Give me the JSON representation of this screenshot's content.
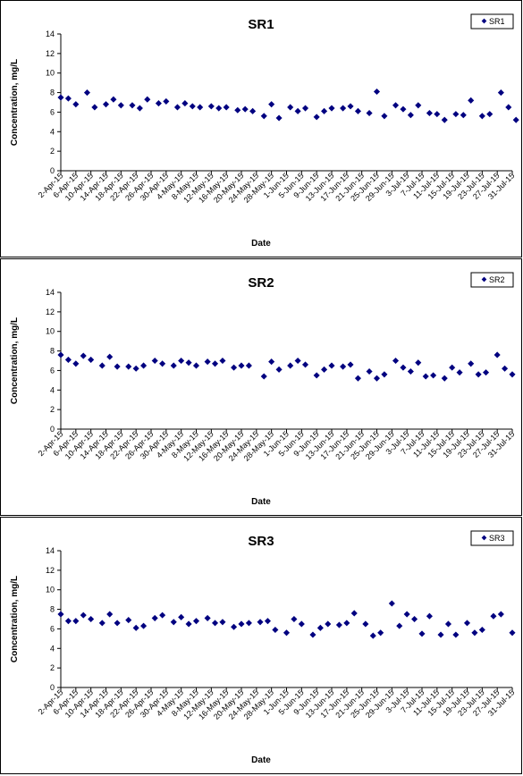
{
  "chart_data": [
    {
      "type": "scatter",
      "title": "SR1",
      "xlabel": "Date",
      "ylabel": "Concentration, mg/L",
      "ylim": [
        0,
        14
      ],
      "yticks": [
        0,
        2,
        4,
        6,
        8,
        10,
        12,
        14
      ],
      "x_tick_labels": [
        "2-Apr-15",
        "6-Apr-15",
        "10-Apr-15",
        "14-Apr-15",
        "18-Apr-15",
        "22-Apr-15",
        "26-Apr-15",
        "30-Apr-15",
        "4-May-15",
        "8-May-15",
        "12-May-15",
        "16-May-15",
        "20-May-15",
        "24-May-15",
        "28-May-15",
        "1-Jun-15",
        "5-Jun-15",
        "9-Jun-15",
        "13-Jun-15",
        "17-Jun-15",
        "21-Jun-15",
        "25-Jun-15",
        "29-Jun-15",
        "3-Jul-15",
        "7-Jul-15",
        "11-Jul-15",
        "15-Jul-15",
        "19-Jul-15",
        "23-Jul-15",
        "27-Jul-15",
        "31-Jul-15"
      ],
      "legend": "top-right",
      "grid": false,
      "series": [
        {
          "name": "SR1",
          "color": "#000080",
          "points": [
            {
              "x": "2-Apr-15",
              "y": 7.5
            },
            {
              "x": "4-Apr-15",
              "y": 7.4
            },
            {
              "x": "6-Apr-15",
              "y": 6.8
            },
            {
              "x": "9-Apr-15",
              "y": 8.0
            },
            {
              "x": "11-Apr-15",
              "y": 6.5
            },
            {
              "x": "14-Apr-15",
              "y": 6.8
            },
            {
              "x": "16-Apr-15",
              "y": 7.3
            },
            {
              "x": "18-Apr-15",
              "y": 6.7
            },
            {
              "x": "21-Apr-15",
              "y": 6.7
            },
            {
              "x": "23-Apr-15",
              "y": 6.4
            },
            {
              "x": "25-Apr-15",
              "y": 7.3
            },
            {
              "x": "28-Apr-15",
              "y": 6.9
            },
            {
              "x": "30-Apr-15",
              "y": 7.1
            },
            {
              "x": "3-May-15",
              "y": 6.5
            },
            {
              "x": "5-May-15",
              "y": 6.9
            },
            {
              "x": "7-May-15",
              "y": 6.6
            },
            {
              "x": "9-May-15",
              "y": 6.5
            },
            {
              "x": "12-May-15",
              "y": 6.6
            },
            {
              "x": "14-May-15",
              "y": 6.4
            },
            {
              "x": "16-May-15",
              "y": 6.5
            },
            {
              "x": "19-May-15",
              "y": 6.2
            },
            {
              "x": "21-May-15",
              "y": 6.3
            },
            {
              "x": "23-May-15",
              "y": 6.1
            },
            {
              "x": "26-May-15",
              "y": 5.6
            },
            {
              "x": "28-May-15",
              "y": 6.8
            },
            {
              "x": "30-May-15",
              "y": 5.4
            },
            {
              "x": "2-Jun-15",
              "y": 6.5
            },
            {
              "x": "4-Jun-15",
              "y": 6.1
            },
            {
              "x": "6-Jun-15",
              "y": 6.4
            },
            {
              "x": "9-Jun-15",
              "y": 5.5
            },
            {
              "x": "11-Jun-15",
              "y": 6.1
            },
            {
              "x": "13-Jun-15",
              "y": 6.4
            },
            {
              "x": "16-Jun-15",
              "y": 6.4
            },
            {
              "x": "18-Jun-15",
              "y": 6.6
            },
            {
              "x": "20-Jun-15",
              "y": 6.1
            },
            {
              "x": "23-Jun-15",
              "y": 5.9
            },
            {
              "x": "25-Jun-15",
              "y": 8.1
            },
            {
              "x": "27-Jun-15",
              "y": 5.6
            },
            {
              "x": "30-Jun-15",
              "y": 6.7
            },
            {
              "x": "2-Jul-15",
              "y": 6.3
            },
            {
              "x": "4-Jul-15",
              "y": 5.7
            },
            {
              "x": "6-Jul-15",
              "y": 6.7
            },
            {
              "x": "9-Jul-15",
              "y": 5.9
            },
            {
              "x": "11-Jul-15",
              "y": 5.8
            },
            {
              "x": "13-Jul-15",
              "y": 5.2
            },
            {
              "x": "16-Jul-15",
              "y": 5.8
            },
            {
              "x": "18-Jul-15",
              "y": 5.7
            },
            {
              "x": "20-Jul-15",
              "y": 7.2
            },
            {
              "x": "23-Jul-15",
              "y": 5.6
            },
            {
              "x": "25-Jul-15",
              "y": 5.8
            },
            {
              "x": "28-Jul-15",
              "y": 8.0
            },
            {
              "x": "30-Jul-15",
              "y": 6.5
            },
            {
              "x": "1-Aug-15",
              "y": 5.2
            }
          ]
        }
      ]
    },
    {
      "type": "scatter",
      "title": "SR2",
      "xlabel": "Date",
      "ylabel": "Concentration, mg/L",
      "ylim": [
        0,
        14
      ],
      "yticks": [
        0,
        2,
        4,
        6,
        8,
        10,
        12,
        14
      ],
      "x_tick_labels": [
        "2-Apr-15",
        "6-Apr-15",
        "10-Apr-15",
        "14-Apr-15",
        "18-Apr-15",
        "22-Apr-15",
        "26-Apr-15",
        "30-Apr-15",
        "4-May-15",
        "8-May-15",
        "12-May-15",
        "16-May-15",
        "20-May-15",
        "24-May-15",
        "28-May-15",
        "1-Jun-15",
        "5-Jun-15",
        "9-Jun-15",
        "13-Jun-15",
        "17-Jun-15",
        "21-Jun-15",
        "25-Jun-15",
        "29-Jun-15",
        "3-Jul-15",
        "7-Jul-15",
        "11-Jul-15",
        "15-Jul-15",
        "19-Jul-15",
        "23-Jul-15",
        "27-Jul-15",
        "31-Jul-15"
      ],
      "legend": "top-right",
      "grid": false,
      "series": [
        {
          "name": "SR2",
          "color": "#000080",
          "points": [
            {
              "x": "2-Apr-15",
              "y": 7.6
            },
            {
              "x": "4-Apr-15",
              "y": 7.1
            },
            {
              "x": "6-Apr-15",
              "y": 6.7
            },
            {
              "x": "8-Apr-15",
              "y": 7.5
            },
            {
              "x": "10-Apr-15",
              "y": 7.1
            },
            {
              "x": "13-Apr-15",
              "y": 6.5
            },
            {
              "x": "15-Apr-15",
              "y": 7.4
            },
            {
              "x": "17-Apr-15",
              "y": 6.4
            },
            {
              "x": "20-Apr-15",
              "y": 6.4
            },
            {
              "x": "22-Apr-15",
              "y": 6.2
            },
            {
              "x": "24-Apr-15",
              "y": 6.5
            },
            {
              "x": "27-Apr-15",
              "y": 7.0
            },
            {
              "x": "29-Apr-15",
              "y": 6.7
            },
            {
              "x": "2-May-15",
              "y": 6.5
            },
            {
              "x": "4-May-15",
              "y": 7.0
            },
            {
              "x": "6-May-15",
              "y": 6.8
            },
            {
              "x": "8-May-15",
              "y": 6.5
            },
            {
              "x": "11-May-15",
              "y": 6.9
            },
            {
              "x": "13-May-15",
              "y": 6.7
            },
            {
              "x": "15-May-15",
              "y": 7.0
            },
            {
              "x": "18-May-15",
              "y": 6.3
            },
            {
              "x": "20-May-15",
              "y": 6.5
            },
            {
              "x": "22-May-15",
              "y": 6.5
            },
            {
              "x": "26-May-15",
              "y": 5.4
            },
            {
              "x": "28-May-15",
              "y": 6.9
            },
            {
              "x": "30-May-15",
              "y": 6.1
            },
            {
              "x": "2-Jun-15",
              "y": 6.5
            },
            {
              "x": "4-Jun-15",
              "y": 7.0
            },
            {
              "x": "6-Jun-15",
              "y": 6.6
            },
            {
              "x": "9-Jun-15",
              "y": 5.5
            },
            {
              "x": "11-Jun-15",
              "y": 6.1
            },
            {
              "x": "13-Jun-15",
              "y": 6.5
            },
            {
              "x": "16-Jun-15",
              "y": 6.4
            },
            {
              "x": "18-Jun-15",
              "y": 6.6
            },
            {
              "x": "20-Jun-15",
              "y": 5.2
            },
            {
              "x": "23-Jun-15",
              "y": 5.9
            },
            {
              "x": "25-Jun-15",
              "y": 5.2
            },
            {
              "x": "27-Jun-15",
              "y": 5.6
            },
            {
              "x": "30-Jun-15",
              "y": 7.0
            },
            {
              "x": "2-Jul-15",
              "y": 6.3
            },
            {
              "x": "4-Jul-15",
              "y": 5.9
            },
            {
              "x": "6-Jul-15",
              "y": 6.8
            },
            {
              "x": "8-Jul-15",
              "y": 5.4
            },
            {
              "x": "10-Jul-15",
              "y": 5.5
            },
            {
              "x": "13-Jul-15",
              "y": 5.2
            },
            {
              "x": "15-Jul-15",
              "y": 6.3
            },
            {
              "x": "17-Jul-15",
              "y": 5.8
            },
            {
              "x": "20-Jul-15",
              "y": 6.7
            },
            {
              "x": "22-Jul-15",
              "y": 5.6
            },
            {
              "x": "24-Jul-15",
              "y": 5.8
            },
            {
              "x": "27-Jul-15",
              "y": 7.6
            },
            {
              "x": "29-Jul-15",
              "y": 6.2
            },
            {
              "x": "31-Jul-15",
              "y": 5.6
            }
          ]
        }
      ]
    },
    {
      "type": "scatter",
      "title": "SR3",
      "xlabel": "Date",
      "ylabel": "Concentration, mg/L",
      "ylim": [
        0,
        14
      ],
      "yticks": [
        0,
        2,
        4,
        6,
        8,
        10,
        12,
        14
      ],
      "x_tick_labels": [
        "2-Apr-15",
        "6-Apr-15",
        "10-Apr-15",
        "14-Apr-15",
        "18-Apr-15",
        "22-Apr-15",
        "26-Apr-15",
        "30-Apr-15",
        "4-May-15",
        "8-May-15",
        "12-May-15",
        "16-May-15",
        "20-May-15",
        "24-May-15",
        "28-May-15",
        "1-Jun-15",
        "5-Jun-15",
        "9-Jun-15",
        "13-Jun-15",
        "17-Jun-15",
        "21-Jun-15",
        "25-Jun-15",
        "29-Jun-15",
        "3-Jul-15",
        "7-Jul-15",
        "11-Jul-15",
        "15-Jul-15",
        "19-Jul-15",
        "23-Jul-15",
        "27-Jul-15",
        "31-Jul-15"
      ],
      "legend": "top-right",
      "grid": false,
      "series": [
        {
          "name": "SR3",
          "color": "#000080",
          "points": [
            {
              "x": "2-Apr-15",
              "y": 7.5
            },
            {
              "x": "4-Apr-15",
              "y": 6.8
            },
            {
              "x": "6-Apr-15",
              "y": 6.8
            },
            {
              "x": "8-Apr-15",
              "y": 7.4
            },
            {
              "x": "10-Apr-15",
              "y": 7.0
            },
            {
              "x": "13-Apr-15",
              "y": 6.6
            },
            {
              "x": "15-Apr-15",
              "y": 7.5
            },
            {
              "x": "17-Apr-15",
              "y": 6.6
            },
            {
              "x": "20-Apr-15",
              "y": 6.9
            },
            {
              "x": "22-Apr-15",
              "y": 6.1
            },
            {
              "x": "24-Apr-15",
              "y": 6.3
            },
            {
              "x": "27-Apr-15",
              "y": 7.1
            },
            {
              "x": "29-Apr-15",
              "y": 7.4
            },
            {
              "x": "2-May-15",
              "y": 6.7
            },
            {
              "x": "4-May-15",
              "y": 7.2
            },
            {
              "x": "6-May-15",
              "y": 6.5
            },
            {
              "x": "8-May-15",
              "y": 6.8
            },
            {
              "x": "11-May-15",
              "y": 7.1
            },
            {
              "x": "13-May-15",
              "y": 6.6
            },
            {
              "x": "15-May-15",
              "y": 6.7
            },
            {
              "x": "18-May-15",
              "y": 6.2
            },
            {
              "x": "20-May-15",
              "y": 6.5
            },
            {
              "x": "22-May-15",
              "y": 6.6
            },
            {
              "x": "25-May-15",
              "y": 6.7
            },
            {
              "x": "27-May-15",
              "y": 6.8
            },
            {
              "x": "29-May-15",
              "y": 5.9
            },
            {
              "x": "1-Jun-15",
              "y": 5.6
            },
            {
              "x": "3-Jun-15",
              "y": 7.0
            },
            {
              "x": "5-Jun-15",
              "y": 6.5
            },
            {
              "x": "8-Jun-15",
              "y": 5.4
            },
            {
              "x": "10-Jun-15",
              "y": 6.1
            },
            {
              "x": "12-Jun-15",
              "y": 6.5
            },
            {
              "x": "15-Jun-15",
              "y": 6.4
            },
            {
              "x": "17-Jun-15",
              "y": 6.6
            },
            {
              "x": "19-Jun-15",
              "y": 7.6
            },
            {
              "x": "22-Jun-15",
              "y": 6.5
            },
            {
              "x": "24-Jun-15",
              "y": 5.3
            },
            {
              "x": "26-Jun-15",
              "y": 5.6
            },
            {
              "x": "29-Jun-15",
              "y": 8.6
            },
            {
              "x": "1-Jul-15",
              "y": 6.3
            },
            {
              "x": "3-Jul-15",
              "y": 7.5
            },
            {
              "x": "5-Jul-15",
              "y": 7.0
            },
            {
              "x": "7-Jul-15",
              "y": 5.5
            },
            {
              "x": "9-Jul-15",
              "y": 7.3
            },
            {
              "x": "12-Jul-15",
              "y": 5.4
            },
            {
              "x": "14-Jul-15",
              "y": 6.5
            },
            {
              "x": "16-Jul-15",
              "y": 5.4
            },
            {
              "x": "19-Jul-15",
              "y": 6.6
            },
            {
              "x": "21-Jul-15",
              "y": 5.6
            },
            {
              "x": "23-Jul-15",
              "y": 5.9
            },
            {
              "x": "26-Jul-15",
              "y": 7.3
            },
            {
              "x": "28-Jul-15",
              "y": 7.5
            },
            {
              "x": "31-Jul-15",
              "y": 5.6
            }
          ]
        }
      ]
    }
  ]
}
